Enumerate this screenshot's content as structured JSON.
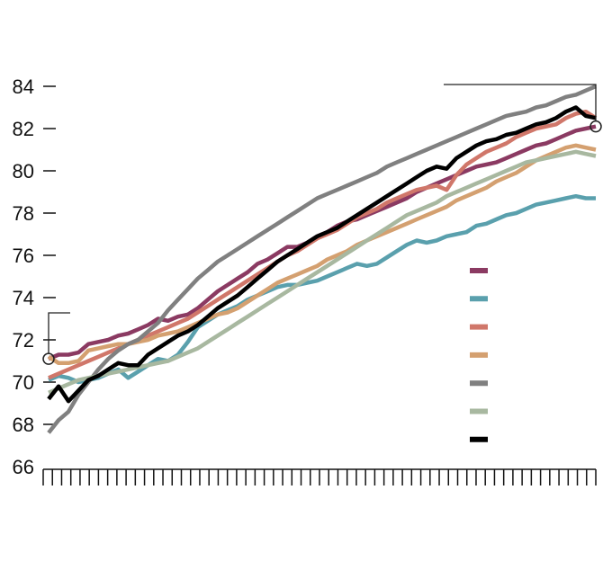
{
  "chart_data": {
    "type": "line",
    "title": "",
    "xlabel": "",
    "ylabel": "",
    "ylim": [
      66,
      84
    ],
    "yticks": [
      "66",
      "68",
      "70",
      "72",
      "74",
      "76",
      "78",
      "80",
      "82",
      "84"
    ],
    "x_tick_count": 60,
    "grid": false,
    "legend_position": "lower-right",
    "start_marker_value": 71.1,
    "end_marker_value": 82.1,
    "series": [
      {
        "color": "#8b3a62",
        "values": [
          71.1,
          71.3,
          71.3,
          71.4,
          71.8,
          71.9,
          72.0,
          72.2,
          72.3,
          72.5,
          72.7,
          73.0,
          72.9,
          73.1,
          73.2,
          73.5,
          73.9,
          74.3,
          74.6,
          74.9,
          75.2,
          75.6,
          75.8,
          76.1,
          76.4,
          76.4,
          76.6,
          76.9,
          77.1,
          77.4,
          77.6,
          77.7,
          77.9,
          78.1,
          78.3,
          78.5,
          78.7,
          79.0,
          79.2,
          79.4,
          79.6,
          79.8,
          80.0,
          80.2,
          80.3,
          80.4,
          80.6,
          80.8,
          81.0,
          81.2,
          81.3,
          81.5,
          81.7,
          81.9,
          82.0,
          82.1
        ]
      },
      {
        "color": "#5aa0ad",
        "values": [
          70.1,
          70.3,
          70.2,
          70.0,
          70.1,
          70.2,
          70.4,
          70.6,
          70.2,
          70.5,
          70.8,
          71.1,
          71.0,
          71.3,
          71.9,
          72.6,
          72.9,
          73.2,
          73.4,
          73.6,
          73.9,
          74.1,
          74.3,
          74.5,
          74.6,
          74.6,
          74.7,
          74.8,
          75.0,
          75.2,
          75.4,
          75.6,
          75.5,
          75.6,
          75.9,
          76.2,
          76.5,
          76.7,
          76.6,
          76.7,
          76.9,
          77.0,
          77.1,
          77.4,
          77.5,
          77.7,
          77.9,
          78.0,
          78.2,
          78.4,
          78.5,
          78.6,
          78.7,
          78.8,
          78.7,
          78.7
        ]
      },
      {
        "color": "#d0776a",
        "values": [
          70.2,
          70.4,
          70.6,
          70.8,
          71.0,
          71.2,
          71.4,
          71.6,
          71.8,
          72.0,
          72.2,
          72.4,
          72.6,
          72.8,
          73.0,
          73.3,
          73.6,
          73.9,
          74.2,
          74.5,
          74.8,
          75.1,
          75.4,
          75.7,
          76.0,
          76.2,
          76.5,
          76.8,
          77.0,
          77.2,
          77.5,
          77.8,
          78.0,
          78.2,
          78.5,
          78.7,
          78.9,
          79.1,
          79.2,
          79.3,
          79.1,
          79.8,
          80.3,
          80.6,
          80.9,
          81.1,
          81.3,
          81.6,
          81.8,
          82.0,
          82.1,
          82.2,
          82.5,
          82.7,
          82.8,
          82.5
        ]
      },
      {
        "color": "#d4a070",
        "values": [
          71.2,
          70.9,
          70.9,
          71.0,
          71.5,
          71.6,
          71.7,
          71.8,
          71.8,
          71.9,
          72.0,
          72.2,
          72.3,
          72.4,
          72.6,
          72.8,
          73.0,
          73.2,
          73.3,
          73.5,
          73.8,
          74.1,
          74.4,
          74.7,
          74.9,
          75.1,
          75.3,
          75.5,
          75.8,
          76.0,
          76.2,
          76.5,
          76.7,
          76.9,
          77.1,
          77.3,
          77.5,
          77.7,
          77.9,
          78.1,
          78.3,
          78.6,
          78.8,
          79.0,
          79.2,
          79.5,
          79.7,
          79.9,
          80.2,
          80.5,
          80.7,
          80.9,
          81.1,
          81.2,
          81.1,
          81.0
        ]
      },
      {
        "color": "#808080",
        "values": [
          67.6,
          68.2,
          68.6,
          69.4,
          70.0,
          70.6,
          71.1,
          71.5,
          71.8,
          72.0,
          72.4,
          72.8,
          73.4,
          73.9,
          74.4,
          74.9,
          75.3,
          75.7,
          76.0,
          76.3,
          76.6,
          76.9,
          77.2,
          77.5,
          77.8,
          78.1,
          78.4,
          78.7,
          78.9,
          79.1,
          79.3,
          79.5,
          79.7,
          79.9,
          80.2,
          80.4,
          80.6,
          80.8,
          81.0,
          81.2,
          81.4,
          81.6,
          81.8,
          82.0,
          82.2,
          82.4,
          82.6,
          82.7,
          82.8,
          83.0,
          83.1,
          83.3,
          83.5,
          83.6,
          83.8,
          84.0
        ]
      },
      {
        "color": "#a8b8a0",
        "values": [
          69.5,
          69.7,
          69.9,
          70.1,
          70.2,
          70.3,
          70.4,
          70.5,
          70.6,
          70.7,
          70.8,
          70.9,
          71.0,
          71.2,
          71.4,
          71.6,
          71.9,
          72.2,
          72.5,
          72.8,
          73.1,
          73.4,
          73.7,
          74.0,
          74.3,
          74.6,
          74.9,
          75.2,
          75.5,
          75.8,
          76.1,
          76.4,
          76.7,
          77.0,
          77.3,
          77.6,
          77.9,
          78.1,
          78.3,
          78.5,
          78.8,
          79.0,
          79.2,
          79.4,
          79.6,
          79.8,
          80.0,
          80.2,
          80.4,
          80.5,
          80.6,
          80.7,
          80.8,
          80.9,
          80.8,
          80.7
        ]
      },
      {
        "color": "#000000",
        "values": [
          69.2,
          69.8,
          69.1,
          69.6,
          70.1,
          70.3,
          70.6,
          70.9,
          70.8,
          70.8,
          71.3,
          71.6,
          71.9,
          72.2,
          72.4,
          72.7,
          73.1,
          73.5,
          73.8,
          74.1,
          74.5,
          74.9,
          75.3,
          75.7,
          76.0,
          76.3,
          76.6,
          76.9,
          77.1,
          77.3,
          77.6,
          77.9,
          78.2,
          78.5,
          78.8,
          79.1,
          79.4,
          79.7,
          80.0,
          80.2,
          80.1,
          80.6,
          80.9,
          81.2,
          81.4,
          81.5,
          81.7,
          81.8,
          82.0,
          82.2,
          82.3,
          82.5,
          82.8,
          83.0,
          82.6,
          82.5
        ]
      }
    ]
  }
}
